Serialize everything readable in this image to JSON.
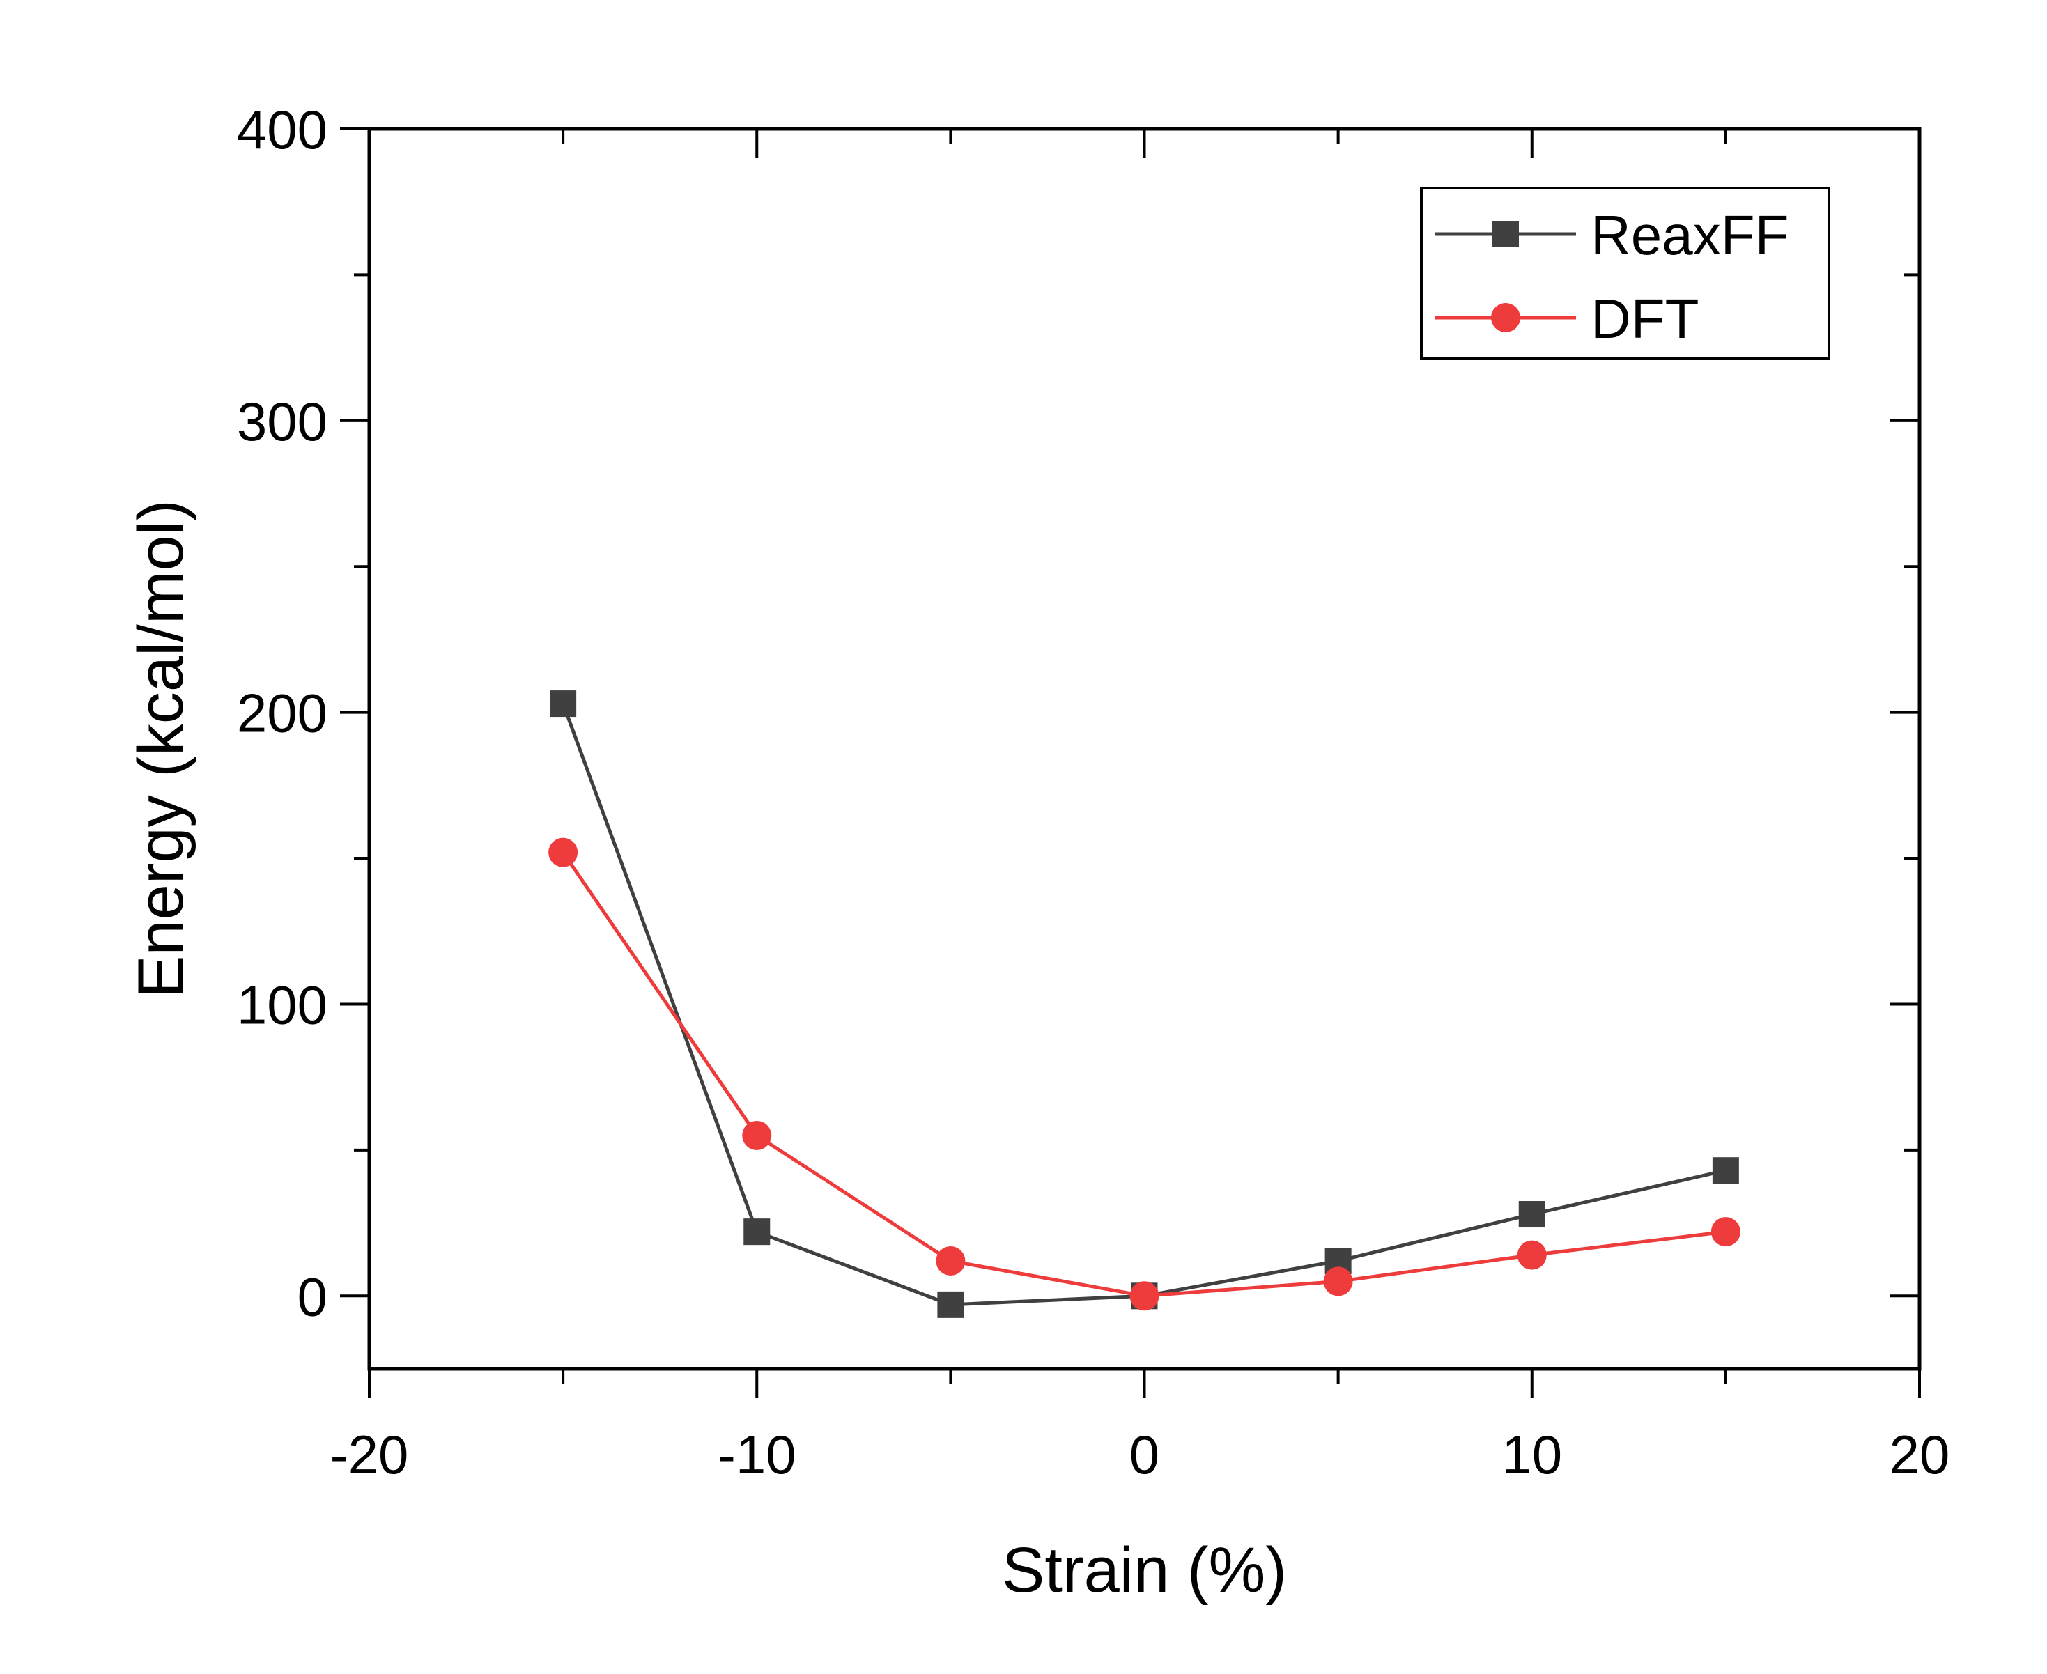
{
  "chart_data": {
    "type": "line",
    "xlabel": "Strain (%)",
    "ylabel": "Energy (kcal/mol)",
    "xlim": [
      -20,
      20
    ],
    "ylim": [
      -25,
      400
    ],
    "xticks": [
      -20,
      -10,
      0,
      10,
      20
    ],
    "yticks": [
      0,
      100,
      200,
      300,
      400
    ],
    "x_minor_ticks": [
      -15,
      -5,
      5,
      15
    ],
    "y_minor_ticks": [
      50,
      150,
      250,
      350
    ],
    "grid": false,
    "legend_position": "top-right",
    "series": [
      {
        "name": "ReaxFF",
        "marker": "square",
        "color": "#404040",
        "x": [
          -15,
          -10,
          -5,
          0,
          5,
          10,
          15
        ],
        "values": [
          203,
          22,
          -3,
          0,
          12,
          28,
          43
        ]
      },
      {
        "name": "DFT",
        "marker": "circle",
        "color": "#ee3b3b",
        "x": [
          -15,
          -10,
          -5,
          0,
          5,
          10,
          15
        ],
        "values": [
          152,
          55,
          12,
          0,
          5,
          14,
          22
        ]
      }
    ]
  }
}
